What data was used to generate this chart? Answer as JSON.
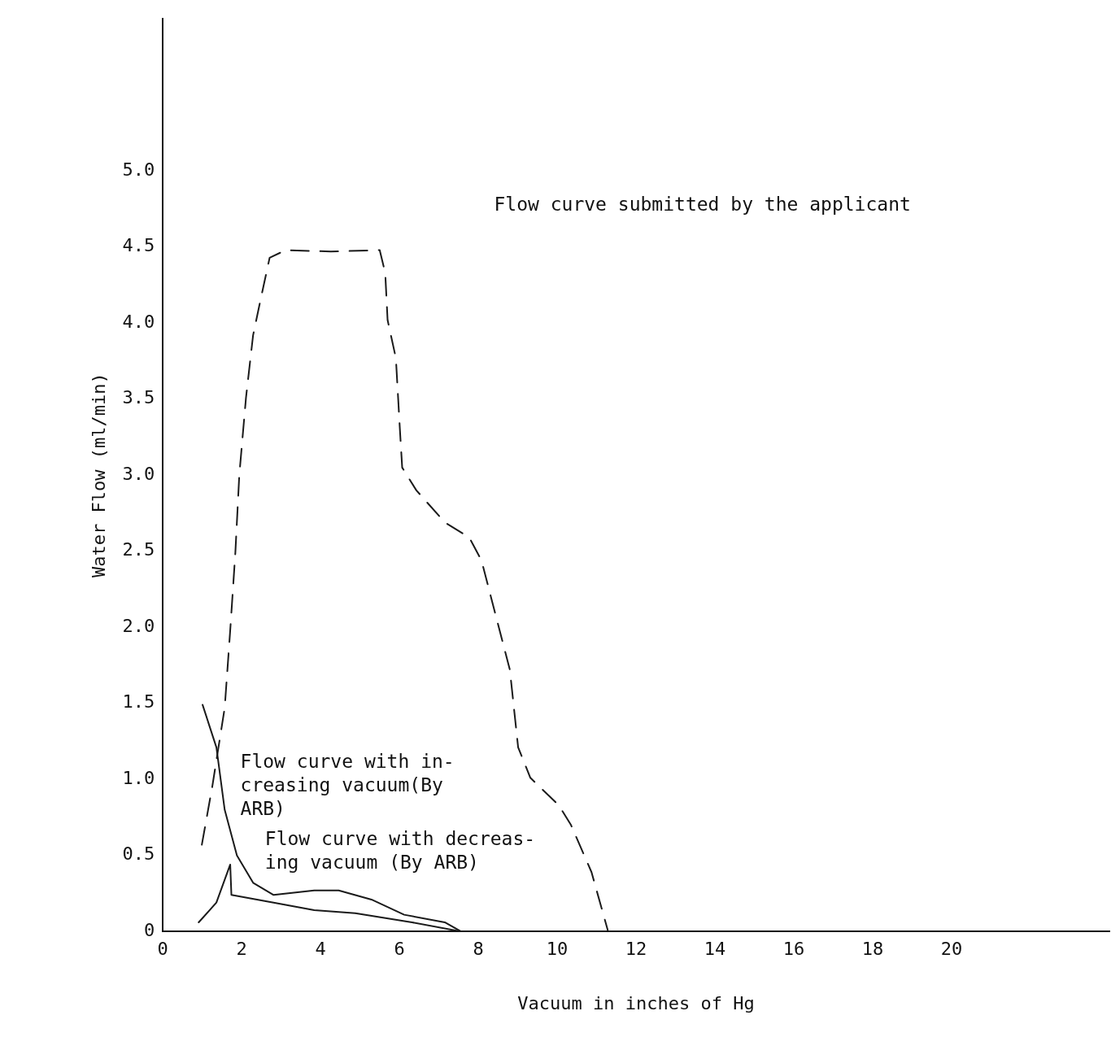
{
  "chart_data": {
    "type": "line",
    "xlabel": "Vacuum in inches of Hg",
    "ylabel": "Water Flow (ml/min)",
    "xlim": [
      0,
      24
    ],
    "ylim": [
      0,
      6
    ],
    "xticks": [
      0,
      2,
      4,
      6,
      8,
      10,
      12,
      14,
      16,
      18,
      20
    ],
    "yticks": [
      {
        "value": 0,
        "label": "0"
      },
      {
        "value": 0.5,
        "label": "0.5"
      },
      {
        "value": 1,
        "label": "1.0"
      },
      {
        "value": 1.5,
        "label": "1.5"
      },
      {
        "value": 2,
        "label": "2.0"
      },
      {
        "value": 2.5,
        "label": "2.5"
      },
      {
        "value": 3,
        "label": "3.0"
      },
      {
        "value": 3.5,
        "label": "3.5"
      },
      {
        "value": 4,
        "label": "4.0"
      },
      {
        "value": 4.5,
        "label": "4.5"
      },
      {
        "value": 5,
        "label": "5.0"
      }
    ],
    "grid": false,
    "legend": false,
    "marker": "none",
    "series": [
      {
        "color": "#1a1a1a",
        "line_style": "dashed",
        "x": [
          0.99,
          1.26,
          1.57,
          1.71,
          1.84,
          1.94,
          2.11,
          2.29,
          2.46,
          2.71,
          3.12,
          4.26,
          5.5,
          5.64,
          5.7,
          5.91,
          6.01,
          6.07,
          6.43,
          7.15,
          7.77,
          8.08,
          8.39,
          8.8,
          9.01,
          9.32,
          10.04,
          10.35,
          10.87,
          11.28
        ],
        "values": [
          0.57,
          0.96,
          1.47,
          1.98,
          2.49,
          3.0,
          3.51,
          3.92,
          4.13,
          4.43,
          4.48,
          4.47,
          4.48,
          4.33,
          4.02,
          3.77,
          3.31,
          3.05,
          2.9,
          2.69,
          2.59,
          2.44,
          2.13,
          1.72,
          1.21,
          1.01,
          0.83,
          0.7,
          0.39,
          0.01
        ]
      },
      {
        "color": "#1a1a1a",
        "line_style": "solid",
        "x": [
          1.01,
          1.36,
          1.57,
          1.88,
          2.29,
          2.81,
          3.84,
          4.46,
          5.29,
          6.12,
          7.15,
          7.56
        ],
        "values": [
          1.49,
          1.21,
          0.8,
          0.5,
          0.32,
          0.24,
          0.27,
          0.27,
          0.21,
          0.11,
          0.06,
          0.0
        ]
      },
      {
        "color": "#1a1a1a",
        "line_style": "solid",
        "x": [
          7.56,
          6.32,
          4.88,
          3.84,
          2.81,
          1.74,
          1.71,
          1.36,
          0.91
        ],
        "values": [
          0.0,
          0.06,
          0.12,
          0.14,
          0.19,
          0.24,
          0.44,
          0.19,
          0.06
        ]
      }
    ],
    "annotations": [
      "Flow curve submitted by the applicant",
      "Flow curve with in-\ncreasing vacuum(By\nARB)",
      "Flow curve with decreas-\ning vacuum (By ARB)"
    ]
  }
}
